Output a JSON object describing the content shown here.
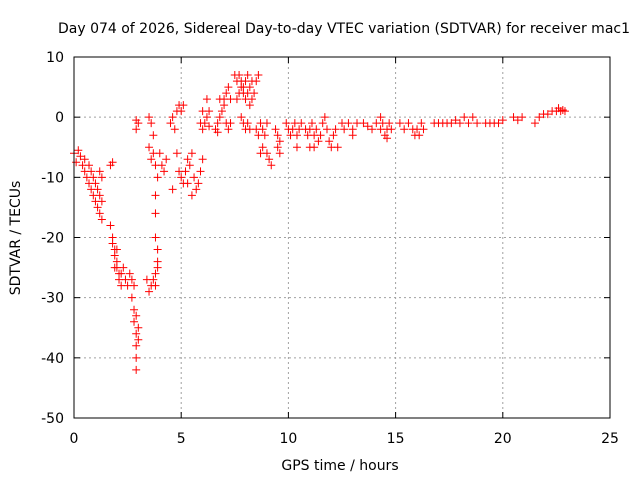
{
  "chart_data": {
    "type": "scatter",
    "title": "Day 074 of 2026, Sidereal Day-to-day VTEC variation (SDTVAR) for receiver mac1",
    "xlabel": "GPS time / hours",
    "ylabel": "SDTVAR / TECUs",
    "xlim": [
      0,
      25
    ],
    "ylim": [
      -50,
      10
    ],
    "xticks": [
      0,
      5,
      10,
      15,
      20,
      25
    ],
    "yticks": [
      -50,
      -40,
      -30,
      -20,
      -10,
      0,
      10
    ],
    "grid": true,
    "marker": "+",
    "series_color": "#ff0000",
    "series": [
      {
        "name": "SDTVAR",
        "points": [
          [
            0.0,
            -6
          ],
          [
            0.1,
            -7.5
          ],
          [
            0.2,
            -5.5
          ],
          [
            0.3,
            -6.5
          ],
          [
            0.4,
            -8
          ],
          [
            0.5,
            -7
          ],
          [
            0.5,
            -9
          ],
          [
            0.6,
            -10
          ],
          [
            0.7,
            -8
          ],
          [
            0.7,
            -11
          ],
          [
            0.8,
            -9
          ],
          [
            0.8,
            -12
          ],
          [
            0.9,
            -10
          ],
          [
            0.9,
            -13
          ],
          [
            1.0,
            -11
          ],
          [
            1.0,
            -14
          ],
          [
            1.1,
            -12
          ],
          [
            1.1,
            -15
          ],
          [
            1.2,
            -13
          ],
          [
            1.2,
            -16
          ],
          [
            1.3,
            -14
          ],
          [
            1.3,
            -17
          ],
          [
            1.2,
            -9
          ],
          [
            1.3,
            -10
          ],
          [
            1.7,
            -8
          ],
          [
            1.8,
            -7.5
          ],
          [
            1.7,
            -18
          ],
          [
            1.8,
            -20
          ],
          [
            1.8,
            -21
          ],
          [
            1.9,
            -22
          ],
          [
            1.9,
            -23
          ],
          [
            2.0,
            -24
          ],
          [
            2.0,
            -25
          ],
          [
            2.1,
            -26
          ],
          [
            2.1,
            -27
          ],
          [
            2.2,
            -26
          ],
          [
            2.2,
            -28
          ],
          [
            2.3,
            -25
          ],
          [
            2.4,
            -27
          ],
          [
            2.5,
            -28
          ],
          [
            1.9,
            -25
          ],
          [
            2.0,
            -22
          ],
          [
            2.6,
            -26
          ],
          [
            2.7,
            -27
          ],
          [
            2.7,
            -30
          ],
          [
            2.8,
            -28
          ],
          [
            2.8,
            -32
          ],
          [
            2.8,
            -34
          ],
          [
            2.9,
            -33
          ],
          [
            2.9,
            -36
          ],
          [
            2.9,
            -38
          ],
          [
            2.9,
            -40
          ],
          [
            2.9,
            -42
          ],
          [
            3.0,
            -37
          ],
          [
            3.0,
            -35
          ],
          [
            2.9,
            -2
          ],
          [
            3.0,
            -1
          ],
          [
            2.9,
            -0.5
          ],
          [
            3.4,
            -27
          ],
          [
            3.5,
            -29
          ],
          [
            3.6,
            -28
          ],
          [
            3.7,
            -27
          ],
          [
            3.8,
            -26
          ],
          [
            3.9,
            -25
          ],
          [
            3.9,
            -24
          ],
          [
            3.8,
            -28
          ],
          [
            3.5,
            -5
          ],
          [
            3.6,
            -7
          ],
          [
            3.7,
            -6
          ],
          [
            3.8,
            -8
          ],
          [
            3.9,
            -10
          ],
          [
            3.8,
            -13
          ],
          [
            3.8,
            -16
          ],
          [
            3.8,
            -20
          ],
          [
            3.9,
            -22
          ],
          [
            3.7,
            -3
          ],
          [
            3.6,
            -1
          ],
          [
            3.5,
            0
          ],
          [
            4.0,
            -6
          ],
          [
            4.1,
            -8
          ],
          [
            4.2,
            -9
          ],
          [
            4.3,
            -7
          ],
          [
            4.5,
            -1
          ],
          [
            4.6,
            0
          ],
          [
            4.7,
            -2
          ],
          [
            4.8,
            1
          ],
          [
            4.9,
            2
          ],
          [
            5.0,
            1
          ],
          [
            5.1,
            2
          ],
          [
            4.6,
            -12
          ],
          [
            4.8,
            -6
          ],
          [
            4.9,
            -9
          ],
          [
            5.0,
            -10
          ],
          [
            5.1,
            -11
          ],
          [
            5.2,
            -9
          ],
          [
            5.3,
            -7
          ],
          [
            5.4,
            -8
          ],
          [
            5.5,
            -6
          ],
          [
            5.6,
            -10
          ],
          [
            5.7,
            -12
          ],
          [
            5.8,
            -11
          ],
          [
            5.9,
            -9
          ],
          [
            6.0,
            -7
          ],
          [
            5.3,
            -11
          ],
          [
            5.5,
            -13
          ],
          [
            5.9,
            -1
          ],
          [
            6.0,
            -2
          ],
          [
            6.1,
            -1
          ],
          [
            6.2,
            0
          ],
          [
            6.3,
            1
          ],
          [
            6.0,
            1
          ],
          [
            6.2,
            3
          ],
          [
            6.3,
            -1.5
          ],
          [
            6.6,
            -2
          ],
          [
            6.7,
            -1
          ],
          [
            6.8,
            0
          ],
          [
            6.9,
            1
          ],
          [
            7.0,
            2
          ],
          [
            7.0,
            3
          ],
          [
            7.1,
            4
          ],
          [
            7.2,
            5
          ],
          [
            7.3,
            3
          ],
          [
            6.8,
            3
          ],
          [
            6.7,
            -2.5
          ],
          [
            7.1,
            -1
          ],
          [
            7.2,
            -2
          ],
          [
            7.3,
            -1
          ],
          [
            7.5,
            7
          ],
          [
            7.6,
            6
          ],
          [
            7.7,
            7
          ],
          [
            7.8,
            6
          ],
          [
            7.9,
            5
          ],
          [
            8.0,
            6
          ],
          [
            8.1,
            7
          ],
          [
            8.2,
            5
          ],
          [
            8.3,
            6
          ],
          [
            8.4,
            4
          ],
          [
            8.5,
            6
          ],
          [
            8.6,
            7
          ],
          [
            7.6,
            3
          ],
          [
            7.7,
            4
          ],
          [
            7.8,
            5
          ],
          [
            7.9,
            4
          ],
          [
            8.0,
            3
          ],
          [
            8.1,
            4
          ],
          [
            8.2,
            2
          ],
          [
            8.3,
            3
          ],
          [
            7.8,
            0
          ],
          [
            7.9,
            -1
          ],
          [
            8.0,
            -2
          ],
          [
            8.1,
            -1
          ],
          [
            8.2,
            -2
          ],
          [
            8.5,
            -2
          ],
          [
            8.6,
            -3
          ],
          [
            8.7,
            -1
          ],
          [
            8.8,
            -2
          ],
          [
            8.9,
            -3
          ],
          [
            9.0,
            -1
          ],
          [
            8.7,
            -6
          ],
          [
            8.8,
            -5
          ],
          [
            9.0,
            -6
          ],
          [
            9.1,
            -7
          ],
          [
            9.2,
            -8
          ],
          [
            9.4,
            -2
          ],
          [
            9.5,
            -3
          ],
          [
            9.6,
            -4
          ],
          [
            9.5,
            -5
          ],
          [
            9.6,
            -6
          ],
          [
            9.9,
            -1
          ],
          [
            10.0,
            -2
          ],
          [
            10.1,
            -3
          ],
          [
            10.2,
            -2
          ],
          [
            10.3,
            -1
          ],
          [
            10.4,
            -3
          ],
          [
            10.5,
            -2
          ],
          [
            10.4,
            -5
          ],
          [
            10.6,
            -1
          ],
          [
            10.8,
            -2
          ],
          [
            10.9,
            -3
          ],
          [
            11.0,
            -2
          ],
          [
            11.1,
            -1
          ],
          [
            11.2,
            -3
          ],
          [
            11.3,
            -2
          ],
          [
            11.4,
            -4
          ],
          [
            11.5,
            -3
          ],
          [
            11.6,
            -1
          ],
          [
            11.7,
            0
          ],
          [
            11.2,
            -5
          ],
          [
            11.0,
            -5
          ],
          [
            11.8,
            -2
          ],
          [
            11.9,
            -4
          ],
          [
            12.0,
            -5
          ],
          [
            12.1,
            -3
          ],
          [
            12.2,
            -2
          ],
          [
            12.3,
            -5
          ],
          [
            12.5,
            -1
          ],
          [
            12.6,
            -2
          ],
          [
            12.8,
            -1
          ],
          [
            13.0,
            -2
          ],
          [
            13.2,
            -1
          ],
          [
            13.0,
            -3
          ],
          [
            13.5,
            -1
          ],
          [
            13.7,
            -1.5
          ],
          [
            13.9,
            -2
          ],
          [
            14.1,
            -1
          ],
          [
            14.3,
            -2
          ],
          [
            14.4,
            -1
          ],
          [
            14.5,
            -3
          ],
          [
            14.6,
            -2
          ],
          [
            14.7,
            -1
          ],
          [
            14.6,
            -3.5
          ],
          [
            14.8,
            -2
          ],
          [
            14.3,
            0
          ],
          [
            15.2,
            -1
          ],
          [
            15.4,
            -2
          ],
          [
            15.6,
            -1
          ],
          [
            15.8,
            -2
          ],
          [
            16.0,
            -2
          ],
          [
            16.2,
            -1
          ],
          [
            16.3,
            -2
          ],
          [
            16.1,
            -3
          ],
          [
            15.9,
            -3
          ],
          [
            16.8,
            -1
          ],
          [
            17.0,
            -1
          ],
          [
            17.2,
            -1
          ],
          [
            17.4,
            -1
          ],
          [
            17.6,
            -1
          ],
          [
            17.8,
            -0.5
          ],
          [
            18.0,
            -1
          ],
          [
            18.2,
            0
          ],
          [
            18.4,
            -1
          ],
          [
            18.6,
            0
          ],
          [
            18.8,
            -1
          ],
          [
            19.2,
            -1
          ],
          [
            19.4,
            -1
          ],
          [
            19.6,
            -1
          ],
          [
            19.8,
            -1
          ],
          [
            20.0,
            -0.5
          ],
          [
            20.5,
            0
          ],
          [
            20.7,
            -0.5
          ],
          [
            20.9,
            0
          ],
          [
            21.5,
            -1
          ],
          [
            21.7,
            0
          ],
          [
            21.9,
            0.5
          ],
          [
            22.1,
            0.5
          ],
          [
            22.3,
            1
          ],
          [
            22.5,
            1
          ],
          [
            22.6,
            1.5
          ],
          [
            22.7,
            1
          ],
          [
            22.8,
            1.2
          ],
          [
            22.9,
            1
          ]
        ]
      }
    ]
  }
}
